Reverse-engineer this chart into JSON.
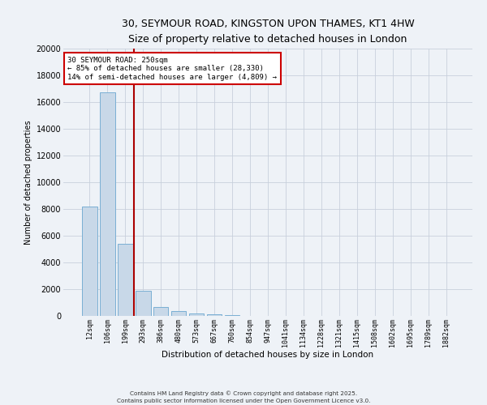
{
  "title_line1": "30, SEYMOUR ROAD, KINGSTON UPON THAMES, KT1 4HW",
  "title_line2": "Size of property relative to detached houses in London",
  "xlabel": "Distribution of detached houses by size in London",
  "ylabel": "Number of detached properties",
  "categories": [
    "12sqm",
    "106sqm",
    "199sqm",
    "293sqm",
    "386sqm",
    "480sqm",
    "573sqm",
    "667sqm",
    "760sqm",
    "854sqm",
    "947sqm",
    "1041sqm",
    "1134sqm",
    "1228sqm",
    "1321sqm",
    "1415sqm",
    "1508sqm",
    "1602sqm",
    "1695sqm",
    "1789sqm",
    "1882sqm"
  ],
  "values": [
    8200,
    16700,
    5400,
    1850,
    650,
    350,
    200,
    130,
    80,
    0,
    0,
    0,
    0,
    0,
    0,
    0,
    0,
    0,
    0,
    0,
    0
  ],
  "bar_color": "#c8d8e8",
  "bar_edgecolor": "#7aafd4",
  "grid_color": "#c8d0dc",
  "vline_color": "#aa0000",
  "annotation_text": "30 SEYMOUR ROAD: 250sqm\n← 85% of detached houses are smaller (28,330)\n14% of semi-detached houses are larger (4,809) →",
  "annotation_box_edgecolor": "#cc0000",
  "annotation_box_facecolor": "white",
  "ylim": [
    0,
    20000
  ],
  "yticks": [
    0,
    2000,
    4000,
    6000,
    8000,
    10000,
    12000,
    14000,
    16000,
    18000,
    20000
  ],
  "footer_line1": "Contains HM Land Registry data © Crown copyright and database right 2025.",
  "footer_line2": "Contains public sector information licensed under the Open Government Licence v3.0.",
  "background_color": "#eef2f7"
}
